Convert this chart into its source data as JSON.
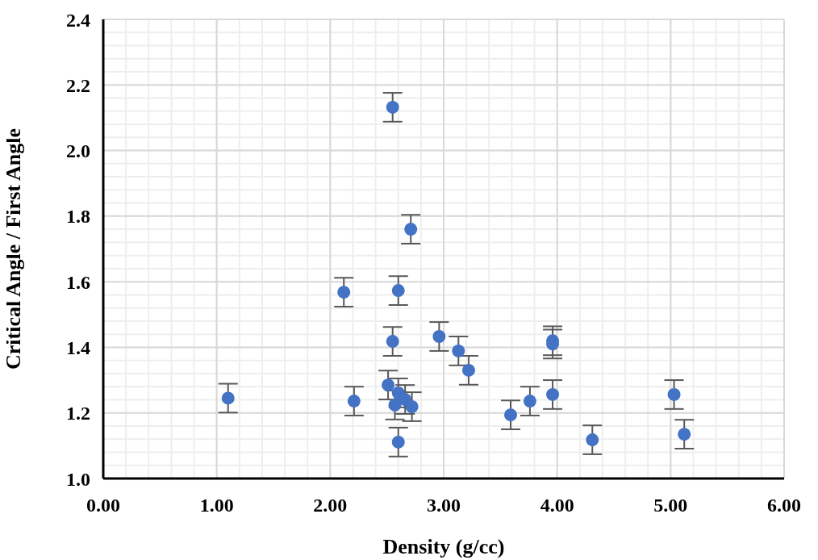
{
  "chart_data": {
    "type": "scatter",
    "xlabel": "Density (g/cc)",
    "ylabel": "Critical Angle / First Angle",
    "x": [
      1.1,
      2.12,
      2.21,
      2.55,
      2.71,
      2.6,
      2.55,
      2.51,
      2.6,
      2.66,
      2.57,
      2.72,
      2.6,
      2.96,
      3.13,
      3.22,
      3.59,
      3.76,
      3.96,
      3.96,
      3.96,
      4.31,
      5.03,
      5.12
    ],
    "series": [
      {
        "color": "#4472c4",
        "values": [
          1.245,
          1.568,
          1.236,
          2.132,
          1.76,
          1.573,
          1.418,
          1.285,
          1.261,
          1.241,
          1.224,
          1.219,
          1.111,
          1.433,
          1.389,
          1.33,
          1.194,
          1.236,
          1.42,
          1.41,
          1.256,
          1.118,
          1.256,
          1.135
        ],
        "errors": [
          0.044,
          0.044,
          0.044,
          0.044,
          0.044,
          0.044,
          0.044,
          0.044,
          0.044,
          0.044,
          0.044,
          0.044,
          0.044,
          0.044,
          0.044,
          0.044,
          0.044,
          0.044,
          0.044,
          0.044,
          0.044,
          0.044,
          0.044,
          0.044
        ]
      }
    ],
    "xlim": [
      0,
      6
    ],
    "xticks": [
      {
        "value": 0,
        "label": "0.00"
      },
      {
        "value": 1,
        "label": "1.00"
      },
      {
        "value": 2,
        "label": "2.00"
      },
      {
        "value": 3,
        "label": "3.00"
      },
      {
        "value": 4,
        "label": "4.00"
      },
      {
        "value": 5,
        "label": "5.00"
      },
      {
        "value": 6,
        "label": "6.00"
      }
    ],
    "ylim": [
      1.0,
      2.4
    ],
    "yticks": [
      {
        "value": 1.0,
        "label": "1.0"
      },
      {
        "value": 1.2,
        "label": "1.2"
      },
      {
        "value": 1.4,
        "label": "1.4"
      },
      {
        "value": 1.6,
        "label": "1.6"
      },
      {
        "value": 1.8,
        "label": "1.8"
      },
      {
        "value": 2.0,
        "label": "2.0"
      },
      {
        "value": 2.2,
        "label": "2.2"
      },
      {
        "value": 2.4,
        "label": "2.4"
      }
    ],
    "grid": true,
    "marker": "circle",
    "legend": false
  }
}
